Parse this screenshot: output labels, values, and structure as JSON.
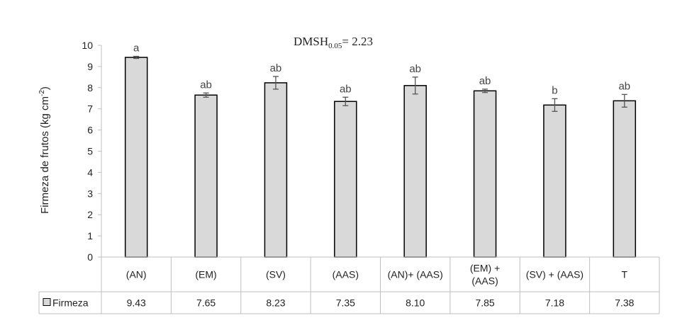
{
  "chart_data": {
    "type": "bar",
    "categories": [
      "(AN)",
      "(EM)",
      "(SV)",
      "(AAS)",
      "(AN)+ (AAS)",
      "(EM) +\n(AAS)",
      "(SV) + (AAS)",
      "T"
    ],
    "series": [
      {
        "name": "Firmeza",
        "values": [
          9.43,
          7.65,
          8.23,
          7.35,
          8.1,
          7.85,
          7.18,
          7.38
        ],
        "value_labels": [
          "9.43",
          "7.65",
          "8.23",
          "7.35",
          "8.10",
          "7.85",
          "7.18",
          "7.38"
        ],
        "errors": [
          0.05,
          0.1,
          0.3,
          0.2,
          0.4,
          0.08,
          0.3,
          0.3
        ],
        "letters": [
          "a",
          "ab",
          "ab",
          "ab",
          "ab",
          "ab",
          "b",
          "ab"
        ],
        "color": "#d9d9d9"
      }
    ],
    "ylabel_main": "Firmeza de frutos (kg cm",
    "ylabel_sup": "-2",
    "ylabel_end": ")",
    "ylim": [
      0,
      10
    ],
    "yticks": [
      "0",
      "1",
      "2",
      "3",
      "4",
      "5",
      "6",
      "7",
      "8",
      "9",
      "10"
    ],
    "annotation": {
      "main": "DMSH",
      "sub": "0.05",
      "rest": "= 2.23"
    },
    "data_table": true,
    "legend_placement": "data-table-left",
    "grid": false
  }
}
